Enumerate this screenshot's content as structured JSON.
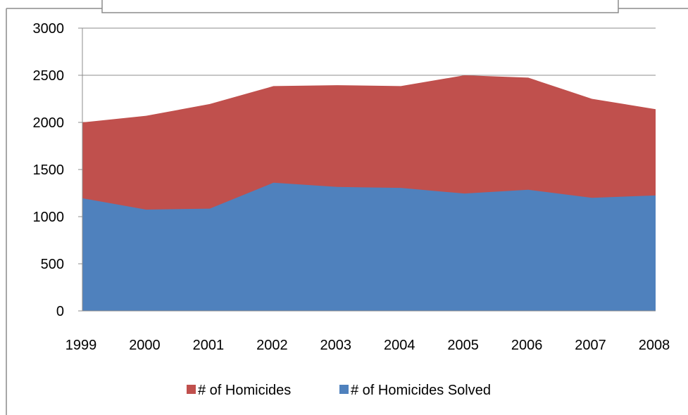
{
  "chart_data": {
    "type": "area",
    "stacked": false,
    "categories": [
      "1999",
      "2000",
      "2001",
      "2002",
      "2003",
      "2004",
      "2005",
      "2006",
      "2007",
      "2008"
    ],
    "series": [
      {
        "name": "# of Homicides",
        "color": "#C0504D",
        "values": [
          2000,
          2070,
          2195,
          2385,
          2395,
          2385,
          2500,
          2475,
          2250,
          2140
        ]
      },
      {
        "name": "# of Homicides Solved",
        "color": "#4F81BD",
        "values": [
          1195,
          1075,
          1085,
          1360,
          1315,
          1305,
          1245,
          1285,
          1200,
          1225
        ]
      }
    ],
    "y_ticks": [
      "0",
      "500",
      "1000",
      "1500",
      "2000",
      "2500",
      "3000"
    ],
    "ylim": [
      0,
      3000
    ],
    "grid": true,
    "legend_position": "bottom"
  }
}
